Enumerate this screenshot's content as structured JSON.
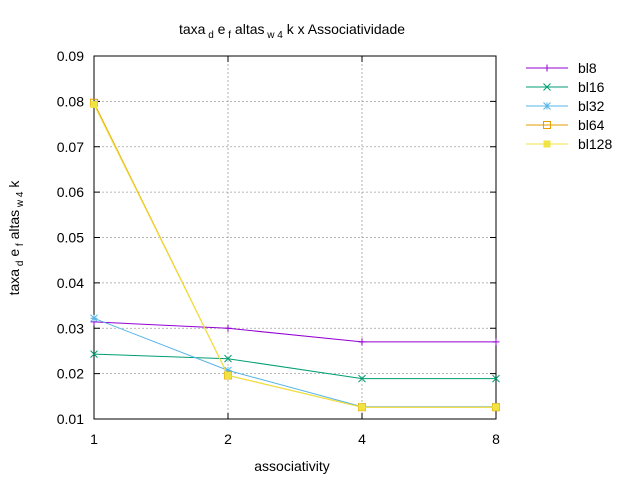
{
  "chart_data": {
    "type": "line",
    "title_parts": [
      {
        "text": "taxa",
        "sub": false
      },
      {
        "text": "d",
        "sub": true
      },
      {
        "text": "e",
        "sub": false
      },
      {
        "text": "f",
        "sub": true
      },
      {
        "text": "altas",
        "sub": false
      },
      {
        "text": "w 4",
        "sub": true
      },
      {
        "text": "k x Associatividade",
        "sub": false
      }
    ],
    "ylabel_parts": [
      {
        "text": "taxa",
        "sub": false
      },
      {
        "text": "d",
        "sub": true
      },
      {
        "text": "e",
        "sub": false
      },
      {
        "text": "f",
        "sub": true
      },
      {
        "text": "altas",
        "sub": false
      },
      {
        "text": "w 4",
        "sub": true
      },
      {
        "text": "k",
        "sub": false
      }
    ],
    "xlabel": "associativity",
    "x": [
      1,
      2,
      4,
      8
    ],
    "x_ticks": [
      "1",
      "2",
      "4",
      "8"
    ],
    "x_scale": "log2",
    "ylim": [
      0.01,
      0.09
    ],
    "y_ticks": [
      "0.01",
      "0.02",
      "0.03",
      "0.04",
      "0.05",
      "0.06",
      "0.07",
      "0.08",
      "0.09"
    ],
    "grid": true,
    "legend_position": "outside-right-top",
    "series": [
      {
        "name": "bl8",
        "color": "#9400d3",
        "marker": "plus",
        "values": [
          0.0314,
          0.03,
          0.027,
          0.027
        ]
      },
      {
        "name": "bl16",
        "color": "#009e73",
        "marker": "cross",
        "values": [
          0.0243,
          0.0233,
          0.0189,
          0.0189
        ]
      },
      {
        "name": "bl32",
        "color": "#56b4e9",
        "marker": "star",
        "values": [
          0.0322,
          0.0207,
          0.0127,
          0.0127
        ]
      },
      {
        "name": "bl64",
        "color": "#e69f00",
        "marker": "open-square",
        "values": [
          0.0797,
          0.0196,
          0.0126,
          0.0126
        ]
      },
      {
        "name": "bl128",
        "color": "#f0e442",
        "marker": "filled-square",
        "values": [
          0.0793,
          0.0196,
          0.0126,
          0.0126
        ]
      }
    ]
  }
}
